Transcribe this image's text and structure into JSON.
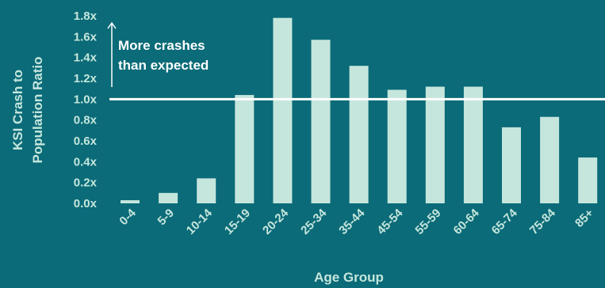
{
  "colors": {
    "background": "#0b6b78",
    "bar": "#c5e6dd",
    "text": "#c5e6dd",
    "reference_line": "#ffffff",
    "annotation": "#ffffff"
  },
  "chart_data": {
    "type": "bar",
    "xlabel": "Age Group",
    "ylabel": [
      "KSI Crash to",
      "Population Ratio"
    ],
    "ylim": [
      0,
      1.8
    ],
    "yticks": [
      "0.0x",
      "0.2x",
      "0.4x",
      "0.6x",
      "0.8x",
      "1.0x",
      "1.2x",
      "1.4x",
      "1.6x",
      "1.8x"
    ],
    "categories": [
      "0-4",
      "5-9",
      "10-14",
      "15-19",
      "20-24",
      "25-34",
      "35-44",
      "45-54",
      "55-59",
      "60-64",
      "65-74",
      "75-84",
      "85+"
    ],
    "values": [
      0.03,
      0.1,
      0.24,
      1.04,
      1.78,
      1.57,
      1.32,
      1.09,
      1.12,
      1.12,
      0.73,
      0.83,
      0.44
    ],
    "reference_line": 1.0,
    "annotation": [
      "More crashes",
      "than expected"
    ],
    "grid": false
  }
}
